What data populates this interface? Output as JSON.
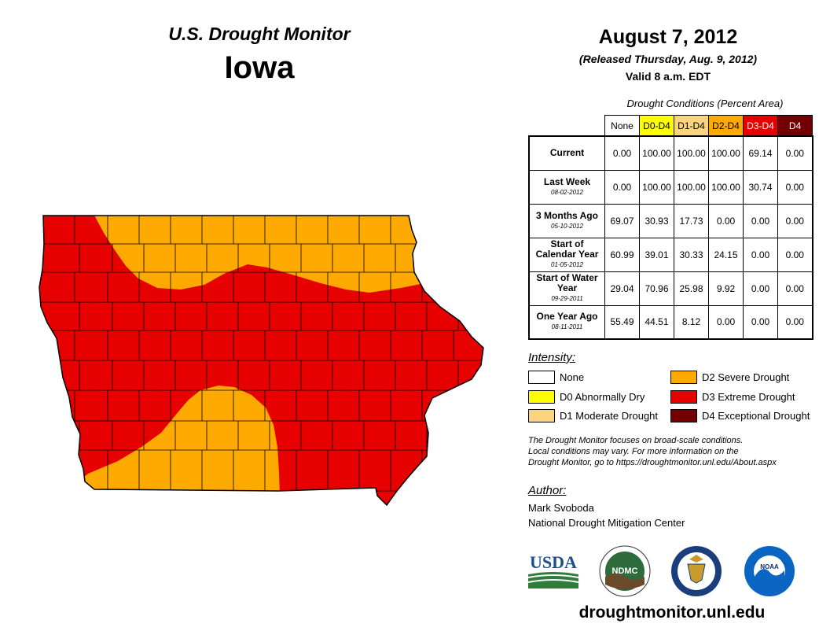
{
  "header": {
    "title": "U.S. Drought Monitor",
    "state": "Iowa",
    "date": "August 7, 2012",
    "released": "(Released Thursday, Aug. 9, 2012)",
    "valid": "Valid 8 a.m. EDT"
  },
  "table": {
    "caption": "Drought Conditions (Percent Area)",
    "columns": [
      "None",
      "D0-D4",
      "D1-D4",
      "D2-D4",
      "D3-D4",
      "D4"
    ],
    "column_colors": [
      "#ffffff",
      "#ffff00",
      "#fcd37f",
      "#ffaa00",
      "#e60000",
      "#730000"
    ],
    "column_text_colors": [
      "#000000",
      "#000000",
      "#000000",
      "#000000",
      "#ffffff",
      "#ffffff"
    ],
    "rows": [
      {
        "label": "Current",
        "date": "",
        "values": [
          "0.00",
          "100.00",
          "100.00",
          "100.00",
          "69.14",
          "0.00"
        ]
      },
      {
        "label": "Last Week",
        "date": "08-02-2012",
        "values": [
          "0.00",
          "100.00",
          "100.00",
          "100.00",
          "30.74",
          "0.00"
        ]
      },
      {
        "label": "3 Months Ago",
        "date": "05-10-2012",
        "values": [
          "69.07",
          "30.93",
          "17.73",
          "0.00",
          "0.00",
          "0.00"
        ]
      },
      {
        "label": "Start of Calendar Year",
        "date": "01-05-2012",
        "values": [
          "60.99",
          "39.01",
          "30.33",
          "24.15",
          "0.00",
          "0.00"
        ]
      },
      {
        "label": "Start of Water Year",
        "date": "09-29-2011",
        "values": [
          "29.04",
          "70.96",
          "25.98",
          "9.92",
          "0.00",
          "0.00"
        ]
      },
      {
        "label": "One Year Ago",
        "date": "08-11-2011",
        "values": [
          "55.49",
          "44.51",
          "8.12",
          "0.00",
          "0.00",
          "0.00"
        ]
      }
    ]
  },
  "legend": {
    "title": "Intensity:",
    "items": [
      {
        "label": "None",
        "color": "#ffffff"
      },
      {
        "label": "D0 Abnormally Dry",
        "color": "#ffff00"
      },
      {
        "label": "D1 Moderate Drought",
        "color": "#fcd37f"
      },
      {
        "label": "D2 Severe Drought",
        "color": "#ffaa00"
      },
      {
        "label": "D3 Extreme Drought",
        "color": "#e60000"
      },
      {
        "label": "D4 Exceptional Drought",
        "color": "#730000"
      }
    ]
  },
  "note": {
    "line1": "The Drought Monitor focuses on broad-scale conditions.",
    "line2": "Local conditions may vary. For more information on the",
    "line3": "Drought Monitor, go to https://droughtmonitor.unl.edu/About.aspx"
  },
  "author": {
    "label": "Author:",
    "name": "Mark Svoboda",
    "org": "National Drought Mitigation Center"
  },
  "logos": {
    "usda": "USDA",
    "ndmc": "NDMC",
    "noaa": "NOAA"
  },
  "url": "droughtmonitor.unl.edu",
  "map": {
    "d3_color": "#e60000",
    "d2_color": "#ffaa00"
  }
}
